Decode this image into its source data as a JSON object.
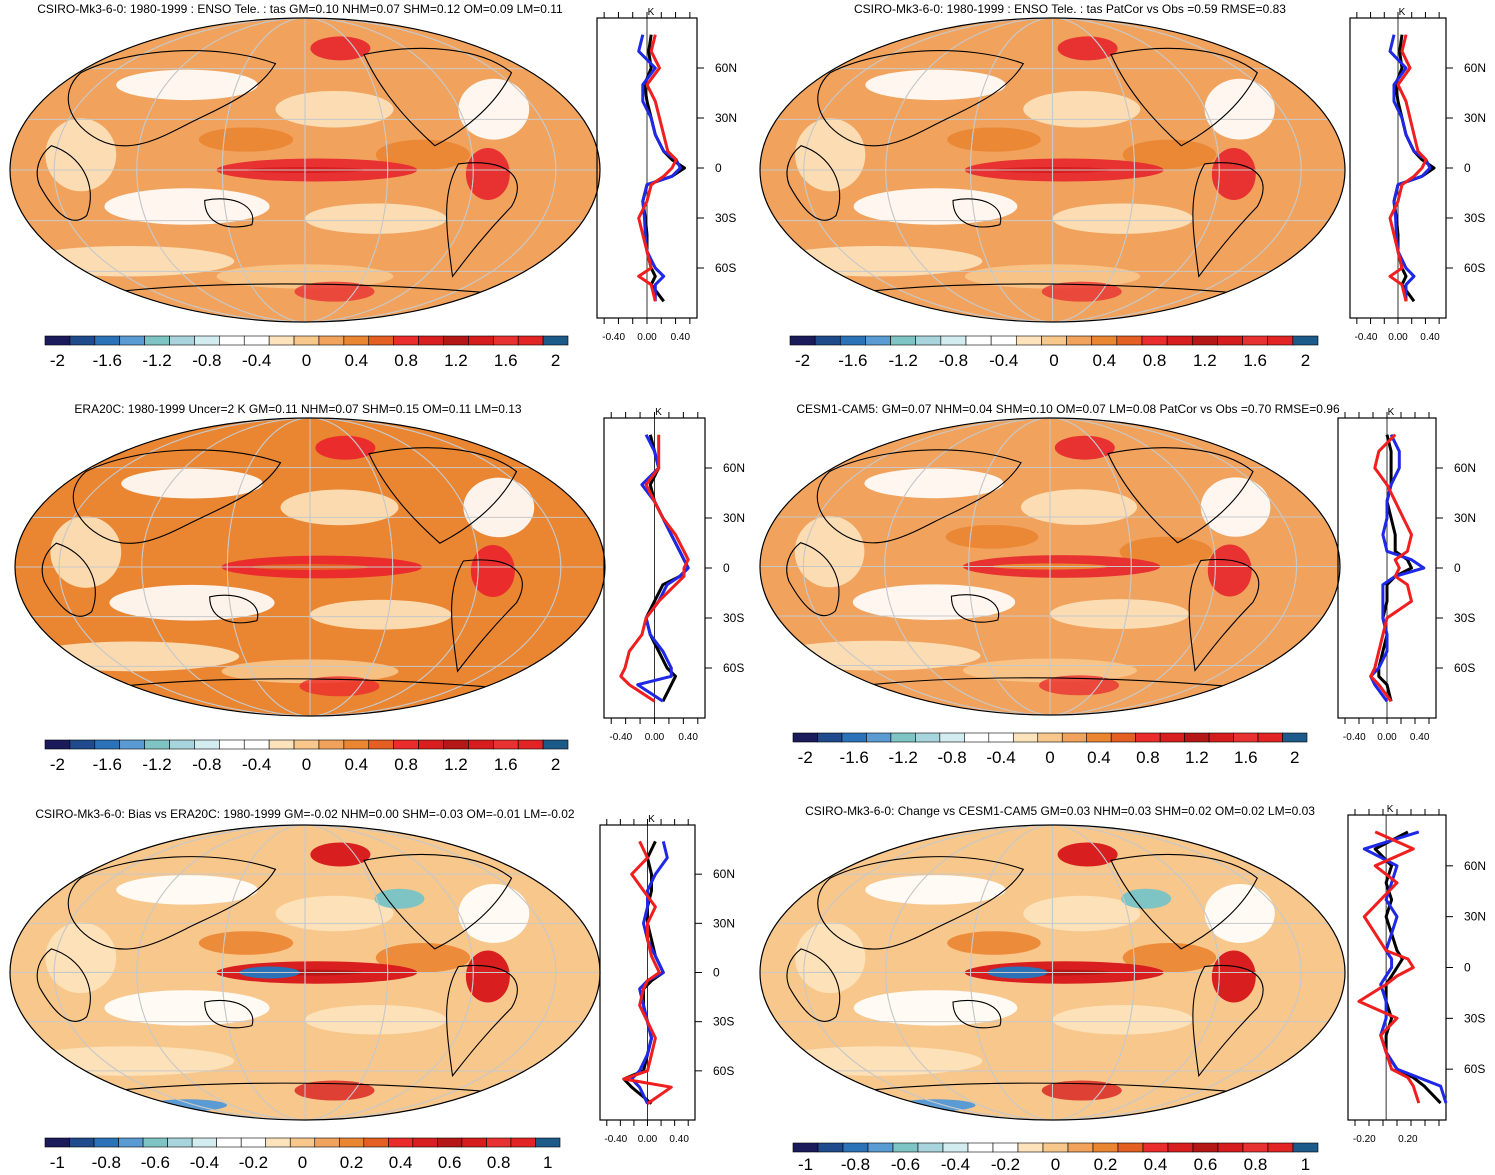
{
  "colors": {
    "ocean_bg": "#ffffff",
    "coast": "#000000",
    "grid": "#c8c8c8",
    "series_model": "#000000",
    "series_blue": "#1e28e6",
    "series_red": "#f01e1e",
    "palette": [
      "#1b1b5c",
      "#1f4a8c",
      "#2c72b8",
      "#5a9bd4",
      "#7fc4c4",
      "#a8d4dd",
      "#d2ecef",
      "#ffffff",
      "#ffffff",
      "#fde3bc",
      "#f8c78c",
      "#f1a35e",
      "#ea8532",
      "#e35f22",
      "#eb2c2c",
      "#d81e1e",
      "#b51717",
      "#d61c1c",
      "#e83131",
      "#e22424",
      "#1c5a8a"
    ]
  },
  "chart_data": [
    {
      "type": "heatmap",
      "title": "CSIRO-Mk3-6-0: 1980-1999 : ENSO Tele. : tas GM=0.10 NHM=0.07 SHM=0.12 OM=0.09 LM=0.11",
      "colorbar_ticks": [
        "-2",
        "-1.6",
        "-1.2",
        "-0.8",
        "-0.4",
        "0",
        "0.4",
        "0.8",
        "1.2",
        "1.6",
        "2"
      ],
      "colorbar_range": [
        -2,
        2
      ],
      "zonal": {
        "unit": "K",
        "xticks": [
          "-0.40",
          "0.00",
          "0.40"
        ],
        "xrange": [
          -0.6,
          0.6
        ],
        "lat_ticks": [
          "60N",
          "30N",
          "0",
          "30S",
          "60S"
        ],
        "lat_values": [
          60,
          30,
          0,
          -30,
          -60
        ],
        "lat": [
          80,
          70,
          60,
          50,
          40,
          30,
          20,
          10,
          5,
          0,
          -5,
          -10,
          -20,
          -30,
          -40,
          -50,
          -60,
          -65,
          -70,
          -80
        ],
        "series": [
          {
            "values": [
              0.05,
              0.02,
              0.05,
              -0.03,
              0.0,
              0.05,
              0.1,
              0.2,
              0.3,
              0.45,
              0.3,
              0.0,
              -0.05,
              -0.02,
              0.0,
              0.0,
              0.05,
              0.1,
              0.05,
              0.2
            ]
          },
          {
            "values": [
              -0.05,
              -0.1,
              0.1,
              -0.05,
              -0.05,
              0.05,
              0.1,
              0.2,
              0.35,
              0.4,
              0.3,
              0.0,
              -0.05,
              -0.03,
              -0.02,
              0.0,
              0.1,
              0.2,
              0.1,
              0.1
            ]
          },
          {
            "values": [
              0.1,
              0.05,
              0.15,
              0.0,
              0.1,
              0.15,
              0.2,
              0.25,
              0.35,
              0.3,
              0.2,
              0.05,
              0.0,
              -0.1,
              -0.05,
              0.0,
              0.05,
              -0.1,
              0.05,
              0.1
            ]
          }
        ]
      }
    },
    {
      "type": "heatmap",
      "title": "CSIRO-Mk3-6-0: 1980-1999 : ENSO Tele. : tas PatCor vs Obs =0.59 RMSE=0.83",
      "colorbar_ticks": [
        "-2",
        "-1.6",
        "-1.2",
        "-0.8",
        "-0.4",
        "0",
        "0.4",
        "0.8",
        "1.2",
        "1.6",
        "2"
      ],
      "colorbar_range": [
        -2,
        2
      ],
      "zonal": {
        "unit": "K",
        "xticks": [
          "-0.40",
          "0.00",
          "0.40"
        ],
        "xrange": [
          -0.6,
          0.6
        ],
        "lat_ticks": [
          "60N",
          "30N",
          "0",
          "30S",
          "60S"
        ],
        "lat_values": [
          60,
          30,
          0,
          -30,
          -60
        ],
        "lat": [
          80,
          70,
          60,
          50,
          40,
          30,
          20,
          10,
          5,
          0,
          -5,
          -10,
          -20,
          -30,
          -40,
          -50,
          -60,
          -65,
          -70,
          -80
        ],
        "series": [
          {
            "values": [
              0.05,
              0.02,
              0.05,
              -0.03,
              0.0,
              0.05,
              0.1,
              0.2,
              0.3,
              0.45,
              0.3,
              0.0,
              -0.05,
              -0.02,
              0.0,
              0.0,
              0.05,
              0.1,
              0.05,
              0.2
            ]
          },
          {
            "values": [
              -0.05,
              -0.1,
              0.1,
              -0.05,
              -0.05,
              0.05,
              0.1,
              0.2,
              0.35,
              0.4,
              0.3,
              0.0,
              -0.05,
              -0.03,
              -0.02,
              0.0,
              0.1,
              0.2,
              0.1,
              0.1
            ]
          },
          {
            "values": [
              0.1,
              0.05,
              0.15,
              0.0,
              0.1,
              0.15,
              0.2,
              0.25,
              0.35,
              0.3,
              0.2,
              0.05,
              0.0,
              -0.1,
              -0.05,
              0.0,
              0.05,
              -0.1,
              0.05,
              0.1
            ]
          }
        ]
      }
    },
    {
      "type": "heatmap",
      "title": "ERA20C: 1980-1999 Uncer=2 K GM=0.11 NHM=0.07 SHM=0.15 OM=0.11 LM=0.13",
      "colorbar_ticks": [
        "-2",
        "-1.6",
        "-1.2",
        "-0.8",
        "-0.4",
        "0",
        "0.4",
        "0.8",
        "1.2",
        "1.6",
        "2"
      ],
      "colorbar_range": [
        -2,
        2
      ],
      "zonal": {
        "unit": "K",
        "xticks": [
          "-0.40",
          "0.00",
          "0.40"
        ],
        "xrange": [
          -0.6,
          0.6
        ],
        "lat_ticks": [
          "60N",
          "30N",
          "0",
          "30S",
          "60S"
        ],
        "lat_values": [
          60,
          30,
          0,
          -30,
          -60
        ],
        "lat": [
          80,
          70,
          60,
          50,
          40,
          30,
          20,
          10,
          5,
          0,
          -5,
          -10,
          -20,
          -30,
          -40,
          -50,
          -60,
          -65,
          -70,
          -80
        ],
        "series": [
          {
            "values": [
              -0.05,
              0.0,
              0.05,
              -0.05,
              0.0,
              0.1,
              0.2,
              0.3,
              0.35,
              0.4,
              0.3,
              0.1,
              0.0,
              -0.1,
              -0.05,
              0.05,
              0.15,
              0.25,
              0.2,
              0.1
            ]
          },
          {
            "values": [
              -0.1,
              0.0,
              0.05,
              -0.15,
              0.0,
              0.1,
              0.2,
              0.3,
              0.35,
              0.4,
              0.3,
              0.15,
              0.05,
              -0.1,
              -0.05,
              0.1,
              0.2,
              0.2,
              -0.2,
              0.1
            ]
          },
          {
            "values": [
              0.05,
              0.05,
              0.05,
              -0.1,
              0.0,
              0.1,
              0.25,
              0.35,
              0.4,
              0.35,
              0.35,
              0.25,
              0.05,
              -0.1,
              -0.15,
              -0.3,
              -0.35,
              -0.4,
              -0.3,
              0.0
            ]
          }
        ]
      }
    },
    {
      "type": "heatmap",
      "title": "CESM1-CAM5: GM=0.07 NHM=0.04 SHM=0.10 OM=0.07 LM=0.08 PatCor vs Obs =0.70 RMSE=0.96",
      "colorbar_ticks": [
        "-2",
        "-1.6",
        "-1.2",
        "-0.8",
        "-0.4",
        "0",
        "0.4",
        "0.8",
        "1.2",
        "1.6",
        "2"
      ],
      "colorbar_range": [
        -2,
        2
      ],
      "zonal": {
        "unit": "K",
        "xticks": [
          "-0.40",
          "0.00",
          "0.40"
        ],
        "xrange": [
          -0.6,
          0.6
        ],
        "lat_ticks": [
          "60N",
          "30N",
          "0",
          "30S",
          "60S"
        ],
        "lat_values": [
          60,
          30,
          0,
          -30,
          -60
        ],
        "lat": [
          80,
          70,
          60,
          50,
          40,
          30,
          20,
          10,
          5,
          0,
          -5,
          -10,
          -20,
          -30,
          -40,
          -50,
          -60,
          -65,
          -70,
          -80
        ],
        "series": [
          {
            "values": [
              0.0,
              0.05,
              0.05,
              0.05,
              0.0,
              0.05,
              0.1,
              0.1,
              0.25,
              0.3,
              0.1,
              0.0,
              0.0,
              -0.05,
              0.0,
              -0.05,
              -0.1,
              -0.1,
              0.0,
              0.05
            ]
          },
          {
            "values": [
              0.05,
              0.15,
              0.15,
              0.05,
              0.0,
              0.0,
              -0.05,
              0.0,
              0.3,
              0.45,
              0.1,
              -0.05,
              -0.05,
              -0.05,
              0.0,
              0.0,
              -0.1,
              -0.2,
              -0.15,
              0.0
            ]
          },
          {
            "values": [
              0.1,
              -0.1,
              -0.15,
              0.0,
              0.1,
              0.2,
              0.3,
              0.25,
              0.1,
              0.15,
              0.1,
              0.25,
              0.3,
              0.0,
              -0.05,
              -0.1,
              -0.15,
              -0.2,
              -0.1,
              0.05
            ]
          }
        ]
      }
    },
    {
      "type": "heatmap",
      "title": "CSIRO-Mk3-6-0: Bias vs ERA20C: 1980-1999 GM=-0.02 NHM=0.00 SHM=-0.03 OM=-0.01 LM=-0.02",
      "colorbar_ticks": [
        "-1",
        "-0.8",
        "-0.6",
        "-0.4",
        "-0.2",
        "0",
        "0.2",
        "0.4",
        "0.6",
        "0.8",
        "1"
      ],
      "colorbar_range": [
        -1,
        1
      ],
      "zonal": {
        "unit": "K",
        "xticks": [
          "-0.40",
          "0.00",
          "0.40"
        ],
        "xrange": [
          -0.6,
          0.6
        ],
        "lat_ticks": [
          "60N",
          "30N",
          "0",
          "30S",
          "60S"
        ],
        "lat_values": [
          60,
          30,
          0,
          -30,
          -60
        ],
        "lat": [
          80,
          70,
          60,
          50,
          40,
          30,
          20,
          10,
          5,
          0,
          -5,
          -10,
          -20,
          -30,
          -40,
          -50,
          -60,
          -65,
          -70,
          -80
        ],
        "series": [
          {
            "values": [
              0.1,
              0.0,
              0.05,
              0.05,
              0.0,
              0.0,
              0.05,
              0.1,
              0.15,
              0.2,
              0.05,
              -0.05,
              -0.05,
              0.0,
              0.05,
              0.0,
              -0.05,
              -0.3,
              -0.2,
              0.05
            ]
          },
          {
            "values": [
              0.2,
              0.25,
              0.1,
              0.0,
              0.0,
              -0.05,
              0.0,
              0.1,
              0.15,
              0.2,
              0.0,
              -0.1,
              -0.05,
              0.0,
              0.05,
              0.0,
              -0.1,
              -0.2,
              -0.1,
              0.0
            ]
          },
          {
            "values": [
              -0.1,
              0.0,
              -0.2,
              -0.05,
              0.1,
              0.0,
              0.0,
              0.05,
              0.1,
              0.15,
              0.0,
              -0.05,
              -0.1,
              0.0,
              0.1,
              0.05,
              0.0,
              -0.3,
              0.3,
              0.0
            ]
          }
        ]
      }
    },
    {
      "type": "heatmap",
      "title": "CSIRO-Mk3-6-0: Change vs CESM1-CAM5 GM=0.03 NHM=0.03 SHM=0.02 OM=0.02 LM=0.03",
      "colorbar_ticks": [
        "-1",
        "-0.8",
        "-0.6",
        "-0.4",
        "-0.2",
        "0",
        "0.2",
        "0.4",
        "0.6",
        "0.8",
        "1"
      ],
      "colorbar_range": [
        -1,
        1
      ],
      "zonal": {
        "unit": "K",
        "xticks": [
          "-0.20",
          "0.20"
        ],
        "xrange": [
          -0.35,
          0.55
        ],
        "lat_ticks": [
          "60N",
          "30N",
          "0",
          "30S",
          "60S"
        ],
        "lat_values": [
          60,
          30,
          0,
          -30,
          -60
        ],
        "lat": [
          80,
          70,
          60,
          50,
          40,
          30,
          20,
          10,
          5,
          0,
          -5,
          -10,
          -20,
          -30,
          -40,
          -50,
          -60,
          -65,
          -70,
          -80
        ],
        "series": [
          {
            "values": [
              0.2,
              -0.1,
              0.05,
              0.0,
              0.05,
              0.0,
              0.05,
              0.1,
              0.15,
              0.1,
              0.05,
              0.0,
              0.0,
              0.05,
              0.0,
              0.0,
              0.1,
              0.25,
              0.35,
              0.5
            ]
          },
          {
            "values": [
              0.3,
              -0.2,
              0.1,
              0.05,
              0.0,
              0.1,
              0.05,
              0.0,
              0.05,
              0.05,
              0.0,
              -0.05,
              0.0,
              0.0,
              -0.05,
              0.0,
              0.1,
              0.3,
              0.5,
              0.55
            ]
          },
          {
            "values": [
              -0.1,
              0.25,
              -0.1,
              0.1,
              -0.05,
              -0.2,
              -0.1,
              0.0,
              0.2,
              0.25,
              0.1,
              0.0,
              -0.25,
              0.1,
              -0.05,
              0.0,
              0.05,
              0.2,
              0.25,
              0.3
            ]
          }
        ]
      }
    }
  ]
}
